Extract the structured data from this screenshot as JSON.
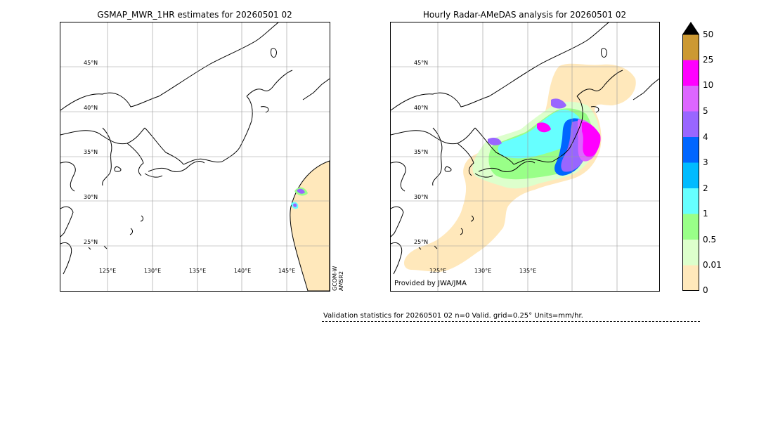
{
  "left_panel": {
    "title": "GSMAP_MWR_1HR estimates for 20260501 02",
    "lat_labels": [
      "45°N",
      "40°N",
      "35°N",
      "30°N",
      "25°N"
    ],
    "lon_labels": [
      "125°E",
      "130°E",
      "135°E",
      "140°E",
      "145°E"
    ],
    "sensor_labels": [
      "GCOM-W",
      "AMSR2"
    ]
  },
  "right_panel": {
    "title": "Hourly Radar-AMeDAS analysis for 20260501 02",
    "lat_labels": [
      "45°N",
      "40°N",
      "35°N",
      "30°N",
      "25°N"
    ],
    "lon_labels": [
      "125°E",
      "130°E",
      "135°E"
    ],
    "credit": "Provided by JWA/JMA"
  },
  "colorbar": {
    "labels": [
      "50",
      "25",
      "10",
      "5",
      "4",
      "3",
      "2",
      "1",
      "0.5",
      "0.01",
      "0"
    ],
    "colors": [
      "#cc9933",
      "#ff00ff",
      "#dd66ff",
      "#9966ff",
      "#0066ff",
      "#00bbff",
      "#66ffff",
      "#99ff88",
      "#ddffcc",
      "#ffe8bb"
    ],
    "extend_color": "#000000"
  },
  "stats_line": "Validation statistics for 20260501 02  n=0 Valid. grid=0.25° Units=mm/hr."
}
